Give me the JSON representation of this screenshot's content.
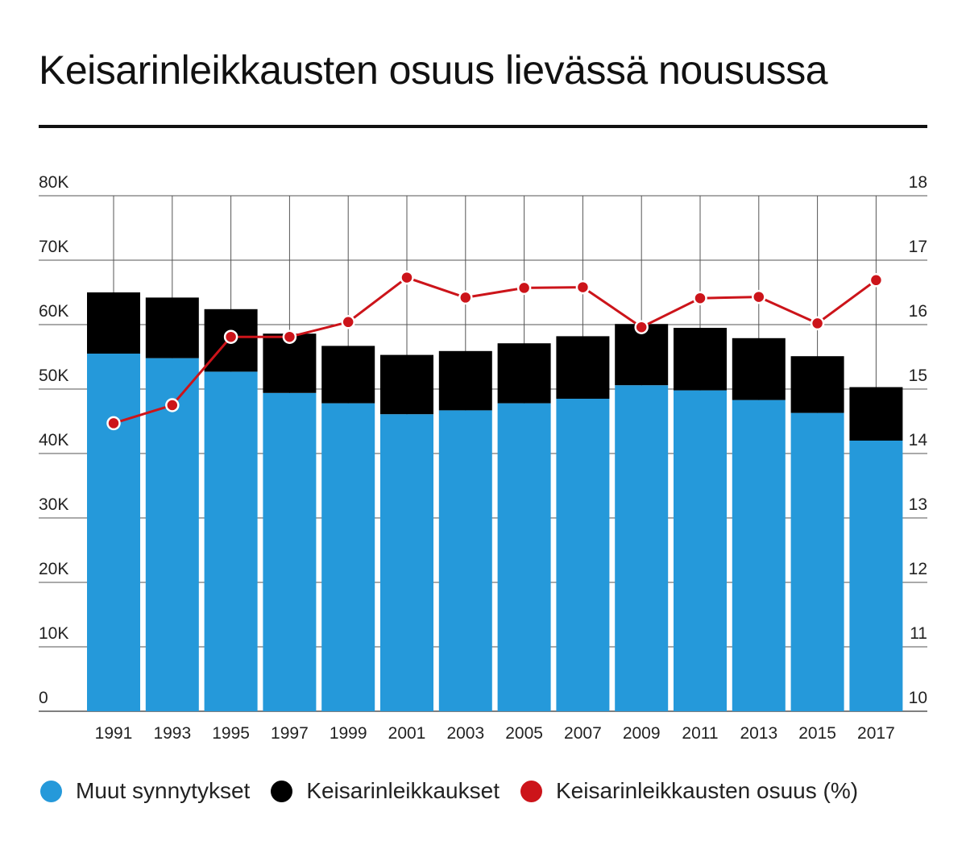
{
  "title": "Keisarinleikkausten osuus lievässä nousussa",
  "colors": {
    "other_births": "#2599da",
    "cesareans": "#000000",
    "share": "#cc141a",
    "grid": "#555555"
  },
  "chart_data": {
    "type": "bar",
    "stacked": true,
    "categories": [
      "1991",
      "1993",
      "1995",
      "1997",
      "1999",
      "2001",
      "2003",
      "2005",
      "2007",
      "2009",
      "2011",
      "2013",
      "2015",
      "2017"
    ],
    "series": [
      {
        "name": "Muut synnytykset",
        "type": "bar",
        "axis": "left",
        "values": [
          55500,
          54800,
          52700,
          49400,
          47800,
          46100,
          46700,
          47800,
          48500,
          50600,
          49800,
          48300,
          46300,
          42000
        ]
      },
      {
        "name": "Keisarinleikkaukset",
        "type": "bar",
        "axis": "left",
        "values": [
          9500,
          9400,
          9700,
          9200,
          8900,
          9200,
          9200,
          9300,
          9700,
          9500,
          9700,
          9600,
          8800,
          8300
        ]
      },
      {
        "name": "Keisarinleikkausten osuus (%)",
        "type": "line",
        "axis": "right",
        "values": [
          14.47,
          14.75,
          15.81,
          15.81,
          16.04,
          16.73,
          16.42,
          16.57,
          16.58,
          15.96,
          16.41,
          16.43,
          16.02,
          16.69
        ]
      }
    ],
    "left_axis": {
      "ylim": [
        0,
        80000
      ],
      "ticks": [
        0,
        10000,
        20000,
        30000,
        40000,
        50000,
        60000,
        70000,
        80000
      ],
      "tick_labels": [
        "0",
        "10K",
        "20K",
        "30K",
        "40K",
        "50K",
        "60K",
        "70K",
        "80K"
      ]
    },
    "right_axis": {
      "ylim": [
        10,
        18
      ],
      "ticks": [
        10,
        11,
        12,
        13,
        14,
        15,
        16,
        17,
        18
      ],
      "tick_labels": [
        "10",
        "11",
        "12",
        "13",
        "14",
        "15",
        "16",
        "17",
        "18"
      ]
    },
    "grid": true,
    "legend_position": "bottom-left"
  }
}
